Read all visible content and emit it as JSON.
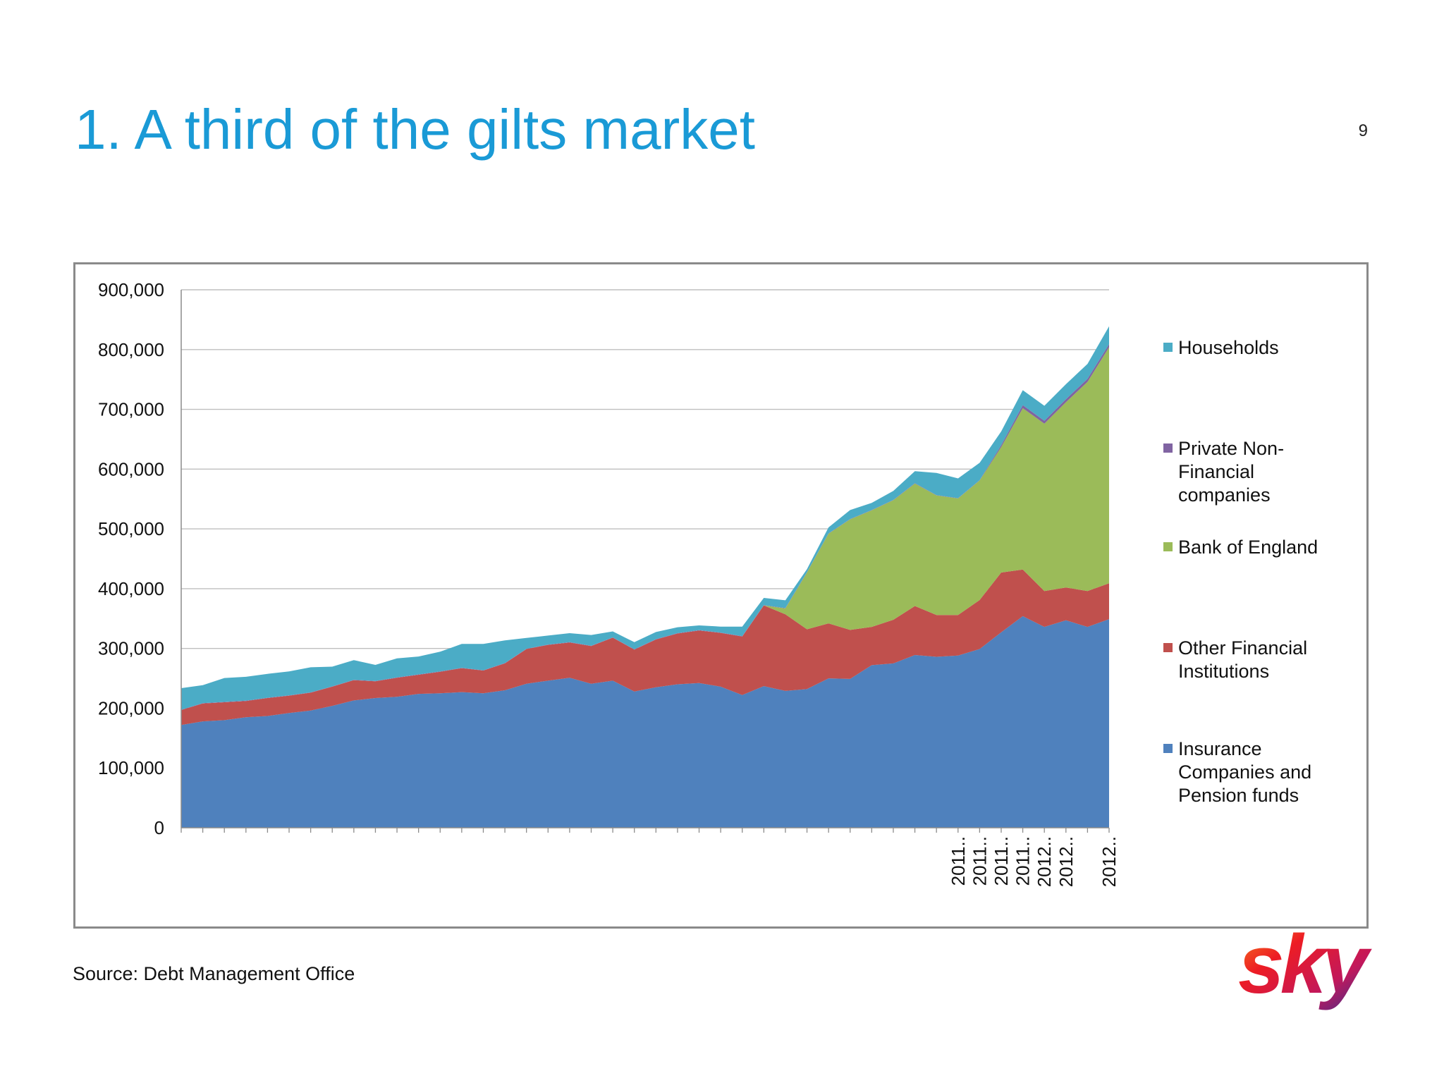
{
  "slide": {
    "title": "1. A third of the gilts market",
    "page_number": "9",
    "source": "Source: Debt Management Office"
  },
  "logo": {
    "text": "sky"
  },
  "chart_data": {
    "type": "area",
    "stacked": true,
    "title": "",
    "xlabel": "",
    "ylabel": "",
    "ylim": [
      0,
      900000
    ],
    "yticks": [
      0,
      100000,
      200000,
      300000,
      400000,
      500000,
      600000,
      700000,
      800000,
      900000
    ],
    "grid": true,
    "legend_position": "right",
    "x_tick_labels": [
      {
        "index": 36,
        "label": "2011.."
      },
      {
        "index": 37,
        "label": "2011.."
      },
      {
        "index": 38,
        "label": "2011.."
      },
      {
        "index": 39,
        "label": "2011.."
      },
      {
        "index": 40,
        "label": "2012.."
      },
      {
        "index": 41,
        "label": "2012.."
      },
      {
        "index": 43,
        "label": "2012.."
      }
    ],
    "series": [
      {
        "name": "Insurance Companies and Pension funds",
        "color": "#4f81bd",
        "values": [
          172000,
          178000,
          180000,
          185000,
          187000,
          192000,
          196000,
          204000,
          213000,
          217000,
          219000,
          224000,
          225000,
          227000,
          225000,
          230000,
          241000,
          246000,
          251000,
          241000,
          246000,
          228000,
          235000,
          240000,
          242000,
          236000,
          222000,
          237000,
          229000,
          232000,
          250000,
          249000,
          272000,
          275000,
          289000,
          286000,
          288000,
          299000,
          327000,
          354000,
          336000,
          347000,
          336000,
          349000
        ]
      },
      {
        "name": "Other Financial Institutions",
        "color": "#c0504d",
        "values": [
          25000,
          30000,
          30000,
          27000,
          30000,
          29000,
          30000,
          32000,
          34000,
          28000,
          32000,
          32000,
          36000,
          40000,
          38000,
          45000,
          58000,
          60000,
          59000,
          63000,
          72000,
          70000,
          80000,
          85000,
          88000,
          90000,
          98000,
          135000,
          128000,
          100000,
          92000,
          82000,
          64000,
          73000,
          82000,
          70000,
          68000,
          82000,
          100000,
          78000,
          60000,
          55000,
          60000,
          60000
        ]
      },
      {
        "name": "Bank of England",
        "color": "#9bbb59",
        "values": [
          0,
          0,
          0,
          0,
          0,
          0,
          0,
          0,
          0,
          0,
          0,
          0,
          0,
          0,
          0,
          0,
          0,
          0,
          0,
          0,
          0,
          0,
          0,
          0,
          0,
          0,
          0,
          0,
          10000,
          95000,
          150000,
          185000,
          195000,
          200000,
          205000,
          200000,
          195000,
          200000,
          210000,
          270000,
          280000,
          310000,
          350000,
          395000
        ]
      },
      {
        "name": "Private Non-Financial companies",
        "color": "#8064a2",
        "values": [
          500,
          500,
          500,
          500,
          500,
          500,
          500,
          500,
          500,
          500,
          500,
          500,
          500,
          500,
          500,
          500,
          500,
          500,
          500,
          500,
          500,
          500,
          500,
          500,
          500,
          500,
          500,
          500,
          500,
          500,
          500,
          500,
          500,
          500,
          500,
          500,
          500,
          500,
          3000,
          5000,
          5000,
          5000,
          5000,
          5000
        ]
      },
      {
        "name": "Households",
        "color": "#4bacc6",
        "values": [
          36000,
          30000,
          40000,
          40000,
          40000,
          40000,
          42000,
          33000,
          33000,
          27000,
          32000,
          30000,
          33000,
          40000,
          44000,
          38000,
          18000,
          15000,
          15000,
          18000,
          10000,
          12000,
          12000,
          10000,
          8000,
          10000,
          16000,
          12000,
          13000,
          5000,
          10000,
          15000,
          12000,
          15000,
          20000,
          37000,
          33000,
          29000,
          23000,
          25000,
          25000,
          25000,
          25000,
          30000
        ]
      }
    ]
  }
}
